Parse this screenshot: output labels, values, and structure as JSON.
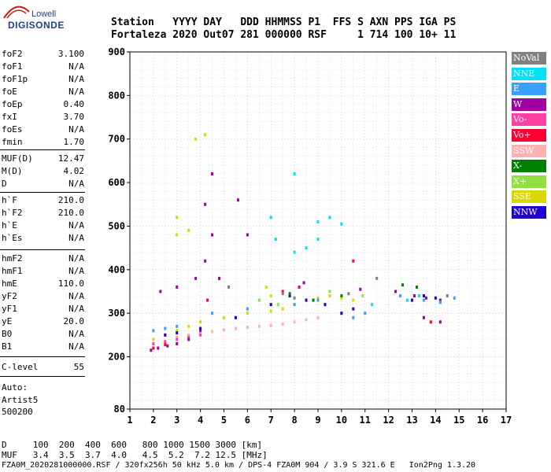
{
  "logo": {
    "line1": "Lowell",
    "line2": "DIGISONDE"
  },
  "header": {
    "row1": "Station   YYYY DAY   DDD HHMMSS P1  FFS S AXN PPS IGA PS",
    "row2": "Fortaleza 2020 Out07 281 000000 RSF     1 714 100 10+ 11"
  },
  "params": [
    {
      "name": "foF2",
      "value": "3.100"
    },
    {
      "name": "foF1",
      "value": "N/A"
    },
    {
      "name": "foF1p",
      "value": "N/A"
    },
    {
      "name": "foE",
      "value": "N/A"
    },
    {
      "name": "foEp",
      "value": "0.40"
    },
    {
      "name": "fxI",
      "value": "3.70"
    },
    {
      "name": "foEs",
      "value": "N/A"
    },
    {
      "name": "fmin",
      "value": "1.70"
    },
    {
      "name": "MUF(D)",
      "value": "12.47"
    },
    {
      "name": "M(D)",
      "value": "4.02"
    },
    {
      "name": "D",
      "value": "N/A"
    },
    {
      "name": "h`F",
      "value": "210.0"
    },
    {
      "name": "h`F2",
      "value": "210.0"
    },
    {
      "name": "h`E",
      "value": "N/A"
    },
    {
      "name": "h`Es",
      "value": "N/A"
    },
    {
      "name": "hmF2",
      "value": "N/A"
    },
    {
      "name": "hmF1",
      "value": "N/A"
    },
    {
      "name": "hmE",
      "value": "110.0"
    },
    {
      "name": "yF2",
      "value": "N/A"
    },
    {
      "name": "yF1",
      "value": "N/A"
    },
    {
      "name": "yE",
      "value": "20.0"
    },
    {
      "name": "B0",
      "value": "N/A"
    },
    {
      "name": "B1",
      "value": "N/A"
    },
    {
      "name": "C-level",
      "value": "55"
    }
  ],
  "auto": {
    "line1": "Auto:",
    "line2": "Artist5",
    "line3": "500200"
  },
  "legend": [
    {
      "label": "NoVal",
      "color": "#808080"
    },
    {
      "label": "NNE",
      "color": "#00e0ff"
    },
    {
      "label": "E",
      "color": "#3aa0ff"
    },
    {
      "label": "W",
      "color": "#a000a0"
    },
    {
      "label": "Vo-",
      "color": "#ff40a0"
    },
    {
      "label": "Vo+",
      "color": "#ff0030"
    },
    {
      "label": "SSW",
      "color": "#ffb0b0"
    },
    {
      "label": "X-",
      "color": "#008000"
    },
    {
      "label": "X+",
      "color": "#90e040"
    },
    {
      "label": "SSE",
      "color": "#d8d800"
    },
    {
      "label": "NNW",
      "color": "#2000d0"
    }
  ],
  "footer": {
    "d_row": "D     100  200  400  600   800 1000 1500 3000 [km]",
    "muf_row": "MUF   3.4  3.5  3.7  4.0   4.5  5.2  7.2 12.5 [MHz]",
    "file_row": "FZA0M_2020281000000.RSF / 320fx256h 50 kHz 5.0 km / DPS-4 FZA0M 904 / 3.9 S 321.6 E   Ion2Png 1.3.20"
  },
  "chart_data": {
    "type": "scatter",
    "title": "",
    "xlabel": "",
    "ylabel": "",
    "xlim": [
      1,
      17
    ],
    "ylim": [
      80,
      900
    ],
    "x_ticks": [
      1,
      2,
      3,
      4,
      5,
      6,
      7,
      8,
      9,
      10,
      11,
      12,
      13,
      14,
      15,
      16,
      17
    ],
    "y_ticks": [
      80,
      200,
      300,
      400,
      500,
      600,
      700,
      800,
      900
    ],
    "grid": true,
    "series": [
      {
        "name": "SSW",
        "color": "#ffb0b0",
        "points": [
          [
            3.0,
            245
          ],
          [
            3.5,
            250
          ],
          [
            4.0,
            255
          ],
          [
            4.5,
            258
          ],
          [
            5.0,
            262
          ],
          [
            5.5,
            265
          ],
          [
            6.0,
            268
          ],
          [
            6.5,
            270
          ],
          [
            7.0,
            272
          ],
          [
            7.5,
            275
          ],
          [
            8.0,
            280
          ],
          [
            8.5,
            285
          ],
          [
            9.0,
            290
          ]
        ]
      },
      {
        "name": "Vo-",
        "color": "#ff40a0",
        "points": [
          [
            2.0,
            230
          ],
          [
            2.5,
            235
          ],
          [
            3.0,
            240
          ],
          [
            3.5,
            245
          ],
          [
            4.0,
            250
          ]
        ]
      },
      {
        "name": "W",
        "color": "#a000a0",
        "points": [
          [
            1.9,
            215
          ],
          [
            2.2,
            220
          ],
          [
            2.6,
            225
          ],
          [
            3.0,
            230
          ],
          [
            3.5,
            240
          ],
          [
            4.0,
            260
          ],
          [
            2.3,
            350
          ],
          [
            3.0,
            360
          ],
          [
            3.8,
            380
          ],
          [
            4.2,
            420
          ],
          [
            4.5,
            480
          ],
          [
            4.2,
            550
          ],
          [
            4.5,
            620
          ],
          [
            5.6,
            560
          ],
          [
            6.0,
            480
          ],
          [
            4.8,
            380
          ],
          [
            8.4,
            370
          ],
          [
            10.8,
            355
          ],
          [
            12.3,
            350
          ],
          [
            13.1,
            340
          ],
          [
            13.6,
            335
          ],
          [
            14.2,
            330
          ],
          [
            13.5,
            290
          ],
          [
            14.2,
            280
          ]
        ]
      },
      {
        "name": "SSE",
        "color": "#d8d800",
        "points": [
          [
            2.0,
            240
          ],
          [
            2.5,
            250
          ],
          [
            3.0,
            260
          ],
          [
            3.5,
            270
          ],
          [
            4.0,
            280
          ],
          [
            5.0,
            290
          ],
          [
            6.0,
            300
          ],
          [
            7.0,
            305
          ],
          [
            7.5,
            310
          ],
          [
            8.0,
            320
          ],
          [
            8.5,
            330
          ],
          [
            9.0,
            335
          ],
          [
            9.5,
            340
          ],
          [
            10.0,
            335
          ],
          [
            10.5,
            330
          ],
          [
            3.0,
            480
          ],
          [
            3.5,
            490
          ],
          [
            3.0,
            520
          ],
          [
            3.8,
            700
          ],
          [
            4.2,
            710
          ],
          [
            6.8,
            360
          ],
          [
            7.0,
            340
          ]
        ]
      },
      {
        "name": "E",
        "color": "#3aa0ff",
        "points": [
          [
            2.0,
            260
          ],
          [
            2.5,
            265
          ],
          [
            3.0,
            270
          ],
          [
            4.5,
            300
          ],
          [
            6.0,
            310
          ],
          [
            8.0,
            320
          ],
          [
            9.0,
            330
          ],
          [
            10.0,
            300
          ],
          [
            10.5,
            290
          ],
          [
            11.0,
            300
          ],
          [
            12.5,
            340
          ],
          [
            13.5,
            330
          ],
          [
            14.2,
            325
          ],
          [
            14.8,
            335
          ]
        ]
      },
      {
        "name": "NNE",
        "color": "#00e0ff",
        "points": [
          [
            8.0,
            440
          ],
          [
            8.5,
            450
          ],
          [
            9.0,
            510
          ],
          [
            9.5,
            520
          ],
          [
            10.0,
            505
          ],
          [
            7.2,
            470
          ],
          [
            7.0,
            520
          ],
          [
            8.0,
            620
          ],
          [
            9.0,
            470
          ],
          [
            11.3,
            320
          ],
          [
            12.8,
            330
          ],
          [
            13.3,
            340
          ]
        ]
      },
      {
        "name": "NNW",
        "color": "#2000d0",
        "points": [
          [
            2.5,
            250
          ],
          [
            3.0,
            255
          ],
          [
            4.0,
            265
          ],
          [
            5.5,
            290
          ],
          [
            7.0,
            320
          ],
          [
            7.8,
            340
          ],
          [
            8.5,
            330
          ],
          [
            9.3,
            320
          ],
          [
            10.0,
            300
          ],
          [
            10.5,
            310
          ],
          [
            13.0,
            330
          ],
          [
            13.5,
            340
          ],
          [
            14.0,
            335
          ]
        ]
      },
      {
        "name": "Vo+",
        "color": "#ff0030",
        "points": [
          [
            2.0,
            220
          ],
          [
            2.5,
            228
          ],
          [
            4.3,
            330
          ],
          [
            7.5,
            350
          ],
          [
            8.2,
            360
          ],
          [
            10.5,
            420
          ],
          [
            13.8,
            280
          ]
        ]
      },
      {
        "name": "X-",
        "color": "#008000",
        "points": [
          [
            7.8,
            345
          ],
          [
            8.8,
            330
          ],
          [
            10.0,
            340
          ],
          [
            12.6,
            365
          ],
          [
            13.2,
            360
          ]
        ]
      },
      {
        "name": "X+",
        "color": "#90e040",
        "points": [
          [
            6.5,
            330
          ],
          [
            7.3,
            320
          ],
          [
            9.5,
            350
          ],
          [
            10.9,
            340
          ]
        ]
      },
      {
        "name": "NoVal",
        "color": "#808080",
        "points": [
          [
            5.2,
            360
          ],
          [
            7.5,
            345
          ],
          [
            8.0,
            335
          ],
          [
            10.3,
            345
          ],
          [
            11.5,
            380
          ],
          [
            14.5,
            340
          ]
        ]
      }
    ]
  }
}
